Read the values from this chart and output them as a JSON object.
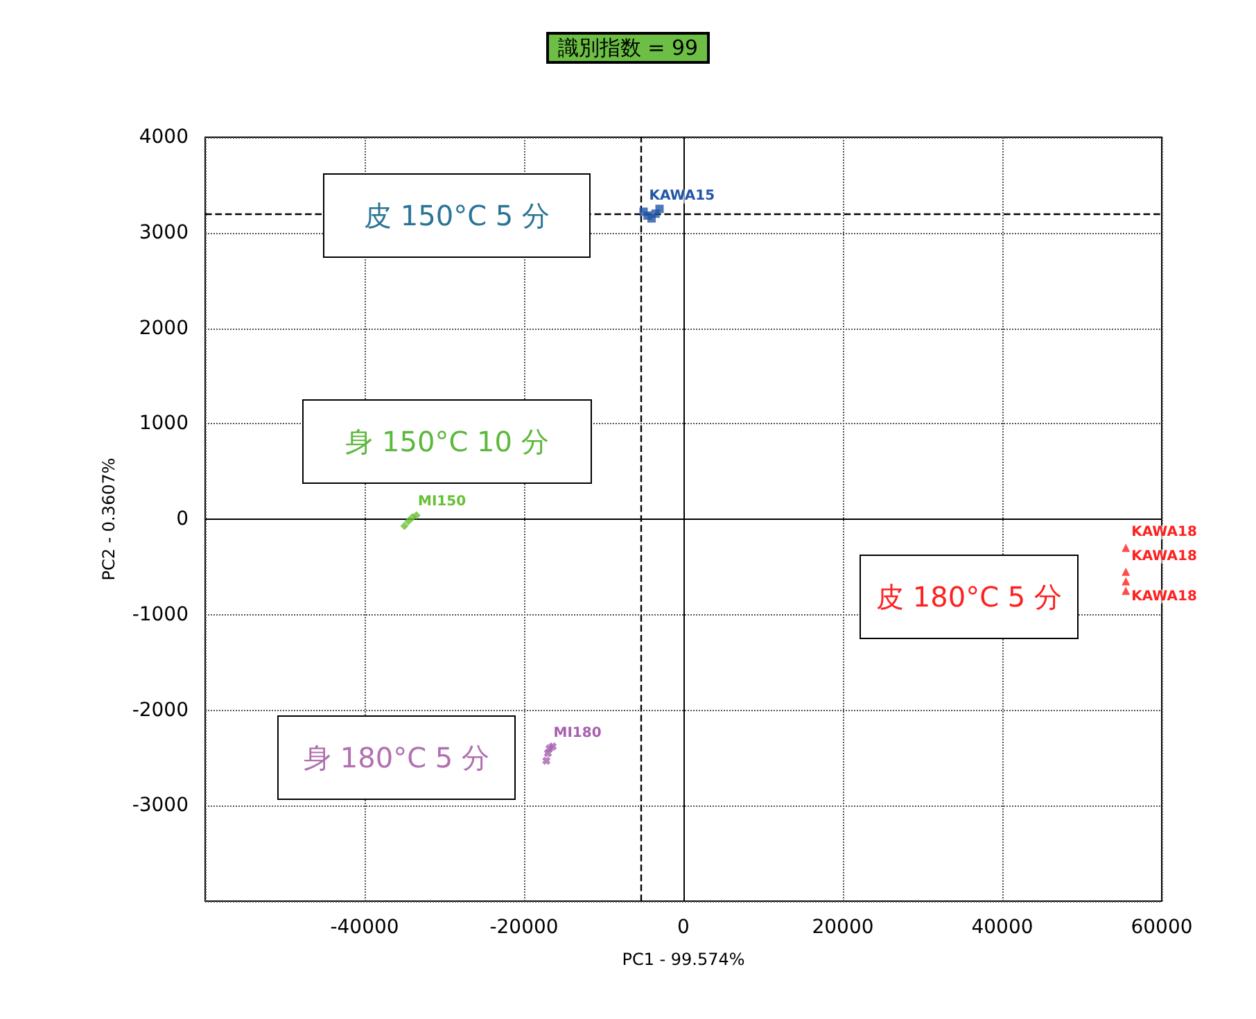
{
  "chart_data": {
    "type": "scatter",
    "title": "識別指数 = 99",
    "xlabel": "PC1 - 99.574%",
    "ylabel": "PC2 - 0.3607%",
    "xlim": [
      -60000,
      60000
    ],
    "xticks": [
      {
        "value": -60000,
        "label": null
      },
      -40000,
      -20000,
      0,
      20000,
      40000,
      60000
    ],
    "ylim": [
      -4000,
      4000
    ],
    "yticks": [
      {
        "value": -4000,
        "label": null
      },
      -3000,
      -2000,
      -1000,
      0,
      1000,
      2000,
      3000,
      4000
    ],
    "grid": true,
    "series": [
      {
        "color": "#2255a5",
        "marker": "square",
        "x": [
          -5000,
          -4500,
          -4000,
          -3500,
          -3000
        ],
        "values": [
          3220,
          3180,
          3150,
          3200,
          3250
        ]
      },
      {
        "color": "#66c033",
        "marker": "diamond",
        "x": [
          -35000,
          -34500,
          -34000,
          -33500
        ],
        "values": [
          -70,
          -20,
          20,
          40
        ]
      },
      {
        "color": "#ff2020",
        "marker": "triangle",
        "x": [
          55500,
          55500,
          55500,
          55500
        ],
        "values": [
          -300,
          -550,
          -650,
          -750
        ]
      },
      {
        "color": "#a860b0",
        "marker": "cross",
        "x": [
          -17200,
          -17000,
          -16800,
          -16400
        ],
        "values": [
          -2530,
          -2450,
          -2400,
          -2380
        ]
      }
    ],
    "ref_lines": [
      {
        "axis": "x",
        "value": -5400,
        "line_style": "dashed",
        "color": "#000000"
      },
      {
        "axis": "y",
        "value": 3200,
        "line_style": "dashed",
        "color": "#000000"
      }
    ],
    "annotations": [
      "皮 150°C 5 分",
      "身 150°C 10 分",
      "皮 180°C 5 分",
      "身 180°C 5 分",
      {
        "text": "KAWA15",
        "x": -5000,
        "y": 3220
      },
      {
        "text": "MI150",
        "x": -34000,
        "y": 20
      },
      {
        "text": "MI180",
        "x": -17000,
        "y": -2400
      },
      {
        "text": "KAWA18",
        "x": 55500,
        "y": -300
      },
      {
        "text": "KAWA18",
        "x": 55500,
        "y": -550
      },
      {
        "text": "KAWA18",
        "x": 55500,
        "y": -650
      }
    ]
  }
}
